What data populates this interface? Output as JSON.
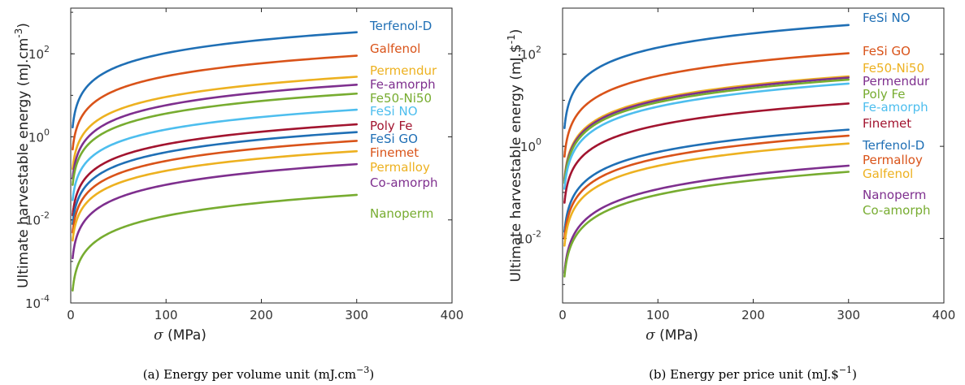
{
  "charts": [
    {
      "type": "line",
      "xlabel_symbol": "σ",
      "xlabel_unit": " (MPa)",
      "ylabel": "Ultimate harvestable energy (mJ.cm",
      "ylabel_exp": "-3",
      "ylabel_close": ")",
      "caption": "(a)  Energy per volume unit (mJ.cm",
      "caption_exp": "−3",
      "caption_close": ")",
      "x_ticks": [
        "0",
        "100",
        "200",
        "300",
        "400"
      ],
      "y_ticks": [
        {
          "base": "10",
          "exp": "-4"
        },
        {
          "base": "10",
          "exp": "-2"
        },
        {
          "base": "10",
          "exp": "0"
        },
        {
          "base": "10",
          "exp": "2"
        }
      ],
      "chart_data": {
        "type": "line",
        "xlim": [
          0,
          400
        ],
        "ylim_log10": [
          -4,
          3.1
        ],
        "y_scale": "log",
        "grid": false,
        "legend_placement": "right of curves",
        "x": [
          2,
          300
        ],
        "series": [
          {
            "name": "Terfenol-D",
            "color": "#1f6fb5",
            "values": [
              1.7,
              330
            ]
          },
          {
            "name": "Galfenol",
            "color": "#d95319",
            "values": [
              0.5,
              90
            ]
          },
          {
            "name": "Permendur",
            "color": "#edb120",
            "values": [
              0.17,
              28
            ]
          },
          {
            "name": "Fe-amorph",
            "color": "#7e2f8e",
            "values": [
              0.1,
              18
            ]
          },
          {
            "name": "Fe50-Ni50",
            "color": "#77ac30",
            "values": [
              0.07,
              11
            ]
          },
          {
            "name": "FeSi NO",
            "color": "#4dbeee",
            "values": [
              0.03,
              4.5
            ]
          },
          {
            "name": "Poly Fe",
            "color": "#a2142f",
            "values": [
              0.013,
              2
            ]
          },
          {
            "name": "FeSi GO",
            "color": "#1f6fb5",
            "values": [
              0.008,
              1.3
            ]
          },
          {
            "name": "Finemet",
            "color": "#d95319",
            "values": [
              0.005,
              0.8
            ]
          },
          {
            "name": "Permalloy",
            "color": "#edb120",
            "values": [
              0.0032,
              0.45
            ]
          },
          {
            "name": "Co-amorph",
            "color": "#7e2f8e",
            "values": [
              0.0012,
              0.22
            ]
          },
          {
            "name": "Nanoperm",
            "color": "#77ac30",
            "values": [
              0.0002,
              0.04
            ]
          }
        ]
      }
    },
    {
      "type": "line",
      "xlabel_symbol": "σ",
      "xlabel_unit": " (MPa)",
      "ylabel": "Ultimate harvestable energy (mJ.$",
      "ylabel_exp": "-1",
      "ylabel_close": ")",
      "caption": "(b)  Energy per price unit (mJ.$",
      "caption_exp": "−1",
      "caption_close": ")",
      "x_ticks": [
        "0",
        "100",
        "200",
        "300",
        "400"
      ],
      "y_ticks": [
        {
          "base": "10",
          "exp": "-2"
        },
        {
          "base": "10",
          "exp": "0"
        },
        {
          "base": "10",
          "exp": "2"
        }
      ],
      "chart_data": {
        "type": "line",
        "xlim": [
          0,
          400
        ],
        "ylim_log10": [
          -3.4,
          3.0
        ],
        "y_scale": "log",
        "grid": false,
        "legend_placement": "right of curves",
        "x": [
          2,
          300
        ],
        "series": [
          {
            "name": "FeSi NO",
            "color": "#1f6fb5",
            "values": [
              2.5,
              430
            ]
          },
          {
            "name": "FeSi GO",
            "color": "#d95319",
            "values": [
              0.6,
              105
            ]
          },
          {
            "name": "Fe50-Ni50",
            "color": "#edb120",
            "values": [
              0.2,
              33
            ]
          },
          {
            "name": "Permendur",
            "color": "#7e2f8e",
            "values": [
              0.18,
              31
            ]
          },
          {
            "name": "Poly Fe",
            "color": "#77ac30",
            "values": [
              0.16,
              28
            ]
          },
          {
            "name": "Fe-amorph",
            "color": "#4dbeee",
            "values": [
              0.12,
              23
            ]
          },
          {
            "name": "Finemet",
            "color": "#a2142f",
            "values": [
              0.06,
              8.5
            ]
          },
          {
            "name": "Terfenol-D",
            "color": "#1f6fb5",
            "values": [
              0.014,
              2.3
            ]
          },
          {
            "name": "Permalloy",
            "color": "#d95319",
            "values": [
              0.01,
              1.7
            ]
          },
          {
            "name": "Galfenol",
            "color": "#edb120",
            "values": [
              0.007,
              1.15
            ]
          },
          {
            "name": "Nanoperm",
            "color": "#7e2f8e",
            "values": [
              0.0018,
              0.38
            ]
          },
          {
            "name": "Co-amorph",
            "color": "#77ac30",
            "values": [
              0.0015,
              0.28
            ]
          }
        ]
      }
    }
  ]
}
